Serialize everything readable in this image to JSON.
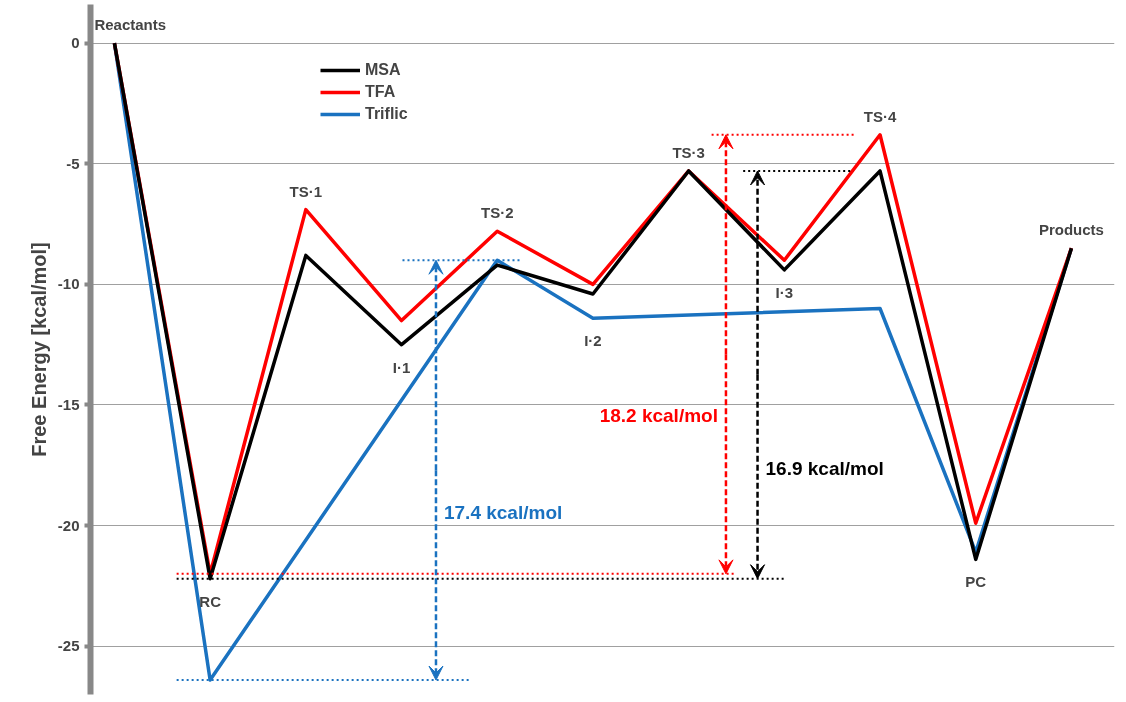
{
  "chart_data": {
    "type": "line",
    "ylabel": "Free Energy [kcal/mol]",
    "categories": [
      "Reactants",
      "RC",
      "TS·1",
      "I·1",
      "TS·2",
      "I·2",
      "TS·3",
      "I·3",
      "TS·4",
      "PC",
      "Products"
    ],
    "series": [
      {
        "name": "MSA",
        "color": "#000000",
        "values": [
          0,
          -22.2,
          -8.8,
          -12.5,
          -9.2,
          -10.4,
          -5.3,
          -9.4,
          -5.3,
          -21.4,
          -8.5
        ]
      },
      {
        "name": "TFA",
        "color": "#ff0000",
        "values": [
          0,
          -22.0,
          -6.9,
          -11.5,
          -7.8,
          -10.0,
          -5.3,
          -9.0,
          -3.8,
          -19.9,
          -8.5
        ]
      },
      {
        "name": "Triflic",
        "color": "#1a72c0",
        "values": [
          0,
          -26.4,
          null,
          null,
          -9.0,
          -11.4,
          null,
          null,
          -11.0,
          -21.1,
          -8.5
        ]
      }
    ],
    "ref_lines": [
      {
        "axis": "y",
        "value": -26.4,
        "color": "#1a72c0",
        "line_style": "dotted"
      },
      {
        "axis": "y",
        "value": -9.0,
        "color": "#1a72c0",
        "line_style": "dotted"
      },
      {
        "axis": "y",
        "value": -22.0,
        "color": "#ff0000",
        "line_style": "dotted"
      },
      {
        "axis": "y",
        "value": -3.8,
        "color": "#ff0000",
        "line_style": "dotted"
      },
      {
        "axis": "y",
        "value": -22.2,
        "color": "#000000",
        "line_style": "dotted"
      },
      {
        "axis": "y",
        "value": -5.3,
        "color": "#000000",
        "line_style": "dotted"
      }
    ],
    "annotations": [
      "17.4 kcal/mol",
      "18.2 kcal/mol",
      "16.9 kcal/mol"
    ],
    "ylim": [
      -27,
      1.6
    ],
    "yticks": [
      0,
      -5,
      -10,
      -15,
      -20,
      -25
    ],
    "grid": "y",
    "legend": "top left"
  }
}
